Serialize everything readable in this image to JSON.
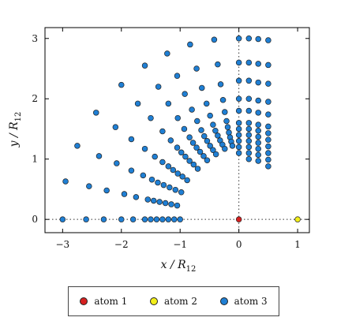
{
  "chart_data": {
    "type": "scatter",
    "xlabel": "x / R",
    "xlabel_sub": "12",
    "ylabel": "y / R",
    "ylabel_sub": "12",
    "xlim": [
      -3.3,
      1.2
    ],
    "ylim": [
      -0.22,
      3.18
    ],
    "xticks": [
      -3,
      -2,
      -1,
      0,
      1
    ],
    "yticks": [
      0,
      1,
      2,
      3
    ],
    "grid": false,
    "reference_lines": {
      "x": 0,
      "y": 0,
      "style": "dotted"
    },
    "legend_position": "below",
    "series": [
      {
        "name": "atom 1",
        "color": "#d62020",
        "points": [
          [
            0,
            0
          ]
        ]
      },
      {
        "name": "atom 2",
        "color": "#f2ee1a",
        "points": [
          [
            1,
            0
          ]
        ]
      },
      {
        "name": "atom 3",
        "color": "#1f7fd4",
        "points": [
          [
            -3.0,
            0.0
          ],
          [
            -2.6,
            0.0
          ],
          [
            -2.3,
            0.0
          ],
          [
            -2.0,
            0.0
          ],
          [
            -1.8,
            0.0
          ],
          [
            -1.6,
            0.0
          ],
          [
            -1.5,
            0.0
          ],
          [
            -1.4,
            0.0
          ],
          [
            -1.3,
            0.0
          ],
          [
            -1.2,
            0.0
          ],
          [
            -1.1,
            0.0
          ],
          [
            -1.0,
            0.0
          ],
          [
            -2.95,
            0.63
          ],
          [
            -2.55,
            0.55
          ],
          [
            -2.25,
            0.48
          ],
          [
            -1.95,
            0.42
          ],
          [
            -1.75,
            0.37
          ],
          [
            -1.55,
            0.33
          ],
          [
            -1.45,
            0.31
          ],
          [
            -1.35,
            0.29
          ],
          [
            -1.25,
            0.27
          ],
          [
            -1.15,
            0.25
          ],
          [
            -1.05,
            0.23
          ],
          [
            -2.75,
            1.22
          ],
          [
            -2.38,
            1.05
          ],
          [
            -2.08,
            0.93
          ],
          [
            -1.83,
            0.81
          ],
          [
            -1.63,
            0.73
          ],
          [
            -1.48,
            0.66
          ],
          [
            -1.38,
            0.61
          ],
          [
            -1.28,
            0.57
          ],
          [
            -1.18,
            0.53
          ],
          [
            -1.08,
            0.49
          ],
          [
            -0.98,
            0.45
          ],
          [
            -2.43,
            1.77
          ],
          [
            -2.1,
            1.53
          ],
          [
            -1.83,
            1.33
          ],
          [
            -1.6,
            1.17
          ],
          [
            -1.43,
            1.04
          ],
          [
            -1.3,
            0.95
          ],
          [
            -1.2,
            0.88
          ],
          [
            -1.12,
            0.82
          ],
          [
            -1.04,
            0.76
          ],
          [
            -0.96,
            0.71
          ],
          [
            -0.88,
            0.65
          ],
          [
            -2.0,
            2.23
          ],
          [
            -1.72,
            1.92
          ],
          [
            -1.5,
            1.68
          ],
          [
            -1.3,
            1.46
          ],
          [
            -1.16,
            1.31
          ],
          [
            -1.05,
            1.19
          ],
          [
            -0.98,
            1.11
          ],
          [
            -0.91,
            1.04
          ],
          [
            -0.84,
            0.97
          ],
          [
            -0.77,
            0.91
          ],
          [
            -0.7,
            0.84
          ],
          [
            -1.6,
            2.55
          ],
          [
            -1.37,
            2.2
          ],
          [
            -1.2,
            1.92
          ],
          [
            -1.04,
            1.68
          ],
          [
            -0.93,
            1.5
          ],
          [
            -0.84,
            1.36
          ],
          [
            -0.78,
            1.27
          ],
          [
            -0.72,
            1.19
          ],
          [
            -0.66,
            1.12
          ],
          [
            -0.6,
            1.05
          ],
          [
            -0.54,
            0.98
          ],
          [
            -1.22,
            2.75
          ],
          [
            -1.05,
            2.38
          ],
          [
            -0.92,
            2.08
          ],
          [
            -0.8,
            1.82
          ],
          [
            -0.71,
            1.63
          ],
          [
            -0.64,
            1.48
          ],
          [
            -0.59,
            1.38
          ],
          [
            -0.54,
            1.3
          ],
          [
            -0.49,
            1.22
          ],
          [
            -0.44,
            1.15
          ],
          [
            -0.39,
            1.08
          ],
          [
            -0.83,
            2.9
          ],
          [
            -0.72,
            2.5
          ],
          [
            -0.63,
            2.18
          ],
          [
            -0.55,
            1.92
          ],
          [
            -0.49,
            1.72
          ],
          [
            -0.44,
            1.57
          ],
          [
            -0.4,
            1.47
          ],
          [
            -0.36,
            1.39
          ],
          [
            -0.32,
            1.31
          ],
          [
            -0.28,
            1.24
          ],
          [
            -0.24,
            1.17
          ],
          [
            -0.42,
            2.98
          ],
          [
            -0.36,
            2.57
          ],
          [
            -0.31,
            2.24
          ],
          [
            -0.27,
            1.98
          ],
          [
            -0.24,
            1.78
          ],
          [
            -0.21,
            1.63
          ],
          [
            -0.19,
            1.53
          ],
          [
            -0.17,
            1.44
          ],
          [
            -0.15,
            1.36
          ],
          [
            -0.13,
            1.29
          ],
          [
            -0.11,
            1.22
          ],
          [
            0.0,
            3.0
          ],
          [
            0.0,
            2.6
          ],
          [
            0.0,
            2.3
          ],
          [
            0.0,
            2.0
          ],
          [
            0.0,
            1.8
          ],
          [
            0.0,
            1.6
          ],
          [
            0.0,
            1.5
          ],
          [
            0.0,
            1.4
          ],
          [
            0.0,
            1.3
          ],
          [
            0.0,
            1.2
          ],
          [
            0.0,
            1.1
          ],
          [
            0.17,
            3.0
          ],
          [
            0.17,
            2.6
          ],
          [
            0.17,
            2.3
          ],
          [
            0.17,
            2.0
          ],
          [
            0.17,
            1.8
          ],
          [
            0.17,
            1.6
          ],
          [
            0.17,
            1.5
          ],
          [
            0.17,
            1.4
          ],
          [
            0.17,
            1.3
          ],
          [
            0.17,
            1.2
          ],
          [
            0.17,
            1.1
          ],
          [
            0.17,
            1.0
          ],
          [
            0.33,
            2.99
          ],
          [
            0.33,
            2.58
          ],
          [
            0.33,
            2.27
          ],
          [
            0.33,
            1.97
          ],
          [
            0.33,
            1.77
          ],
          [
            0.33,
            1.57
          ],
          [
            0.33,
            1.47
          ],
          [
            0.33,
            1.37
          ],
          [
            0.33,
            1.27
          ],
          [
            0.33,
            1.17
          ],
          [
            0.33,
            1.07
          ],
          [
            0.33,
            0.97
          ],
          [
            0.5,
            2.97
          ],
          [
            0.5,
            2.56
          ],
          [
            0.5,
            2.25
          ],
          [
            0.5,
            1.95
          ],
          [
            0.5,
            1.74
          ],
          [
            0.5,
            1.54
          ],
          [
            0.5,
            1.43
          ],
          [
            0.5,
            1.32
          ],
          [
            0.5,
            1.21
          ],
          [
            0.5,
            1.1
          ],
          [
            0.5,
            0.99
          ],
          [
            0.5,
            0.88
          ]
        ]
      }
    ]
  }
}
